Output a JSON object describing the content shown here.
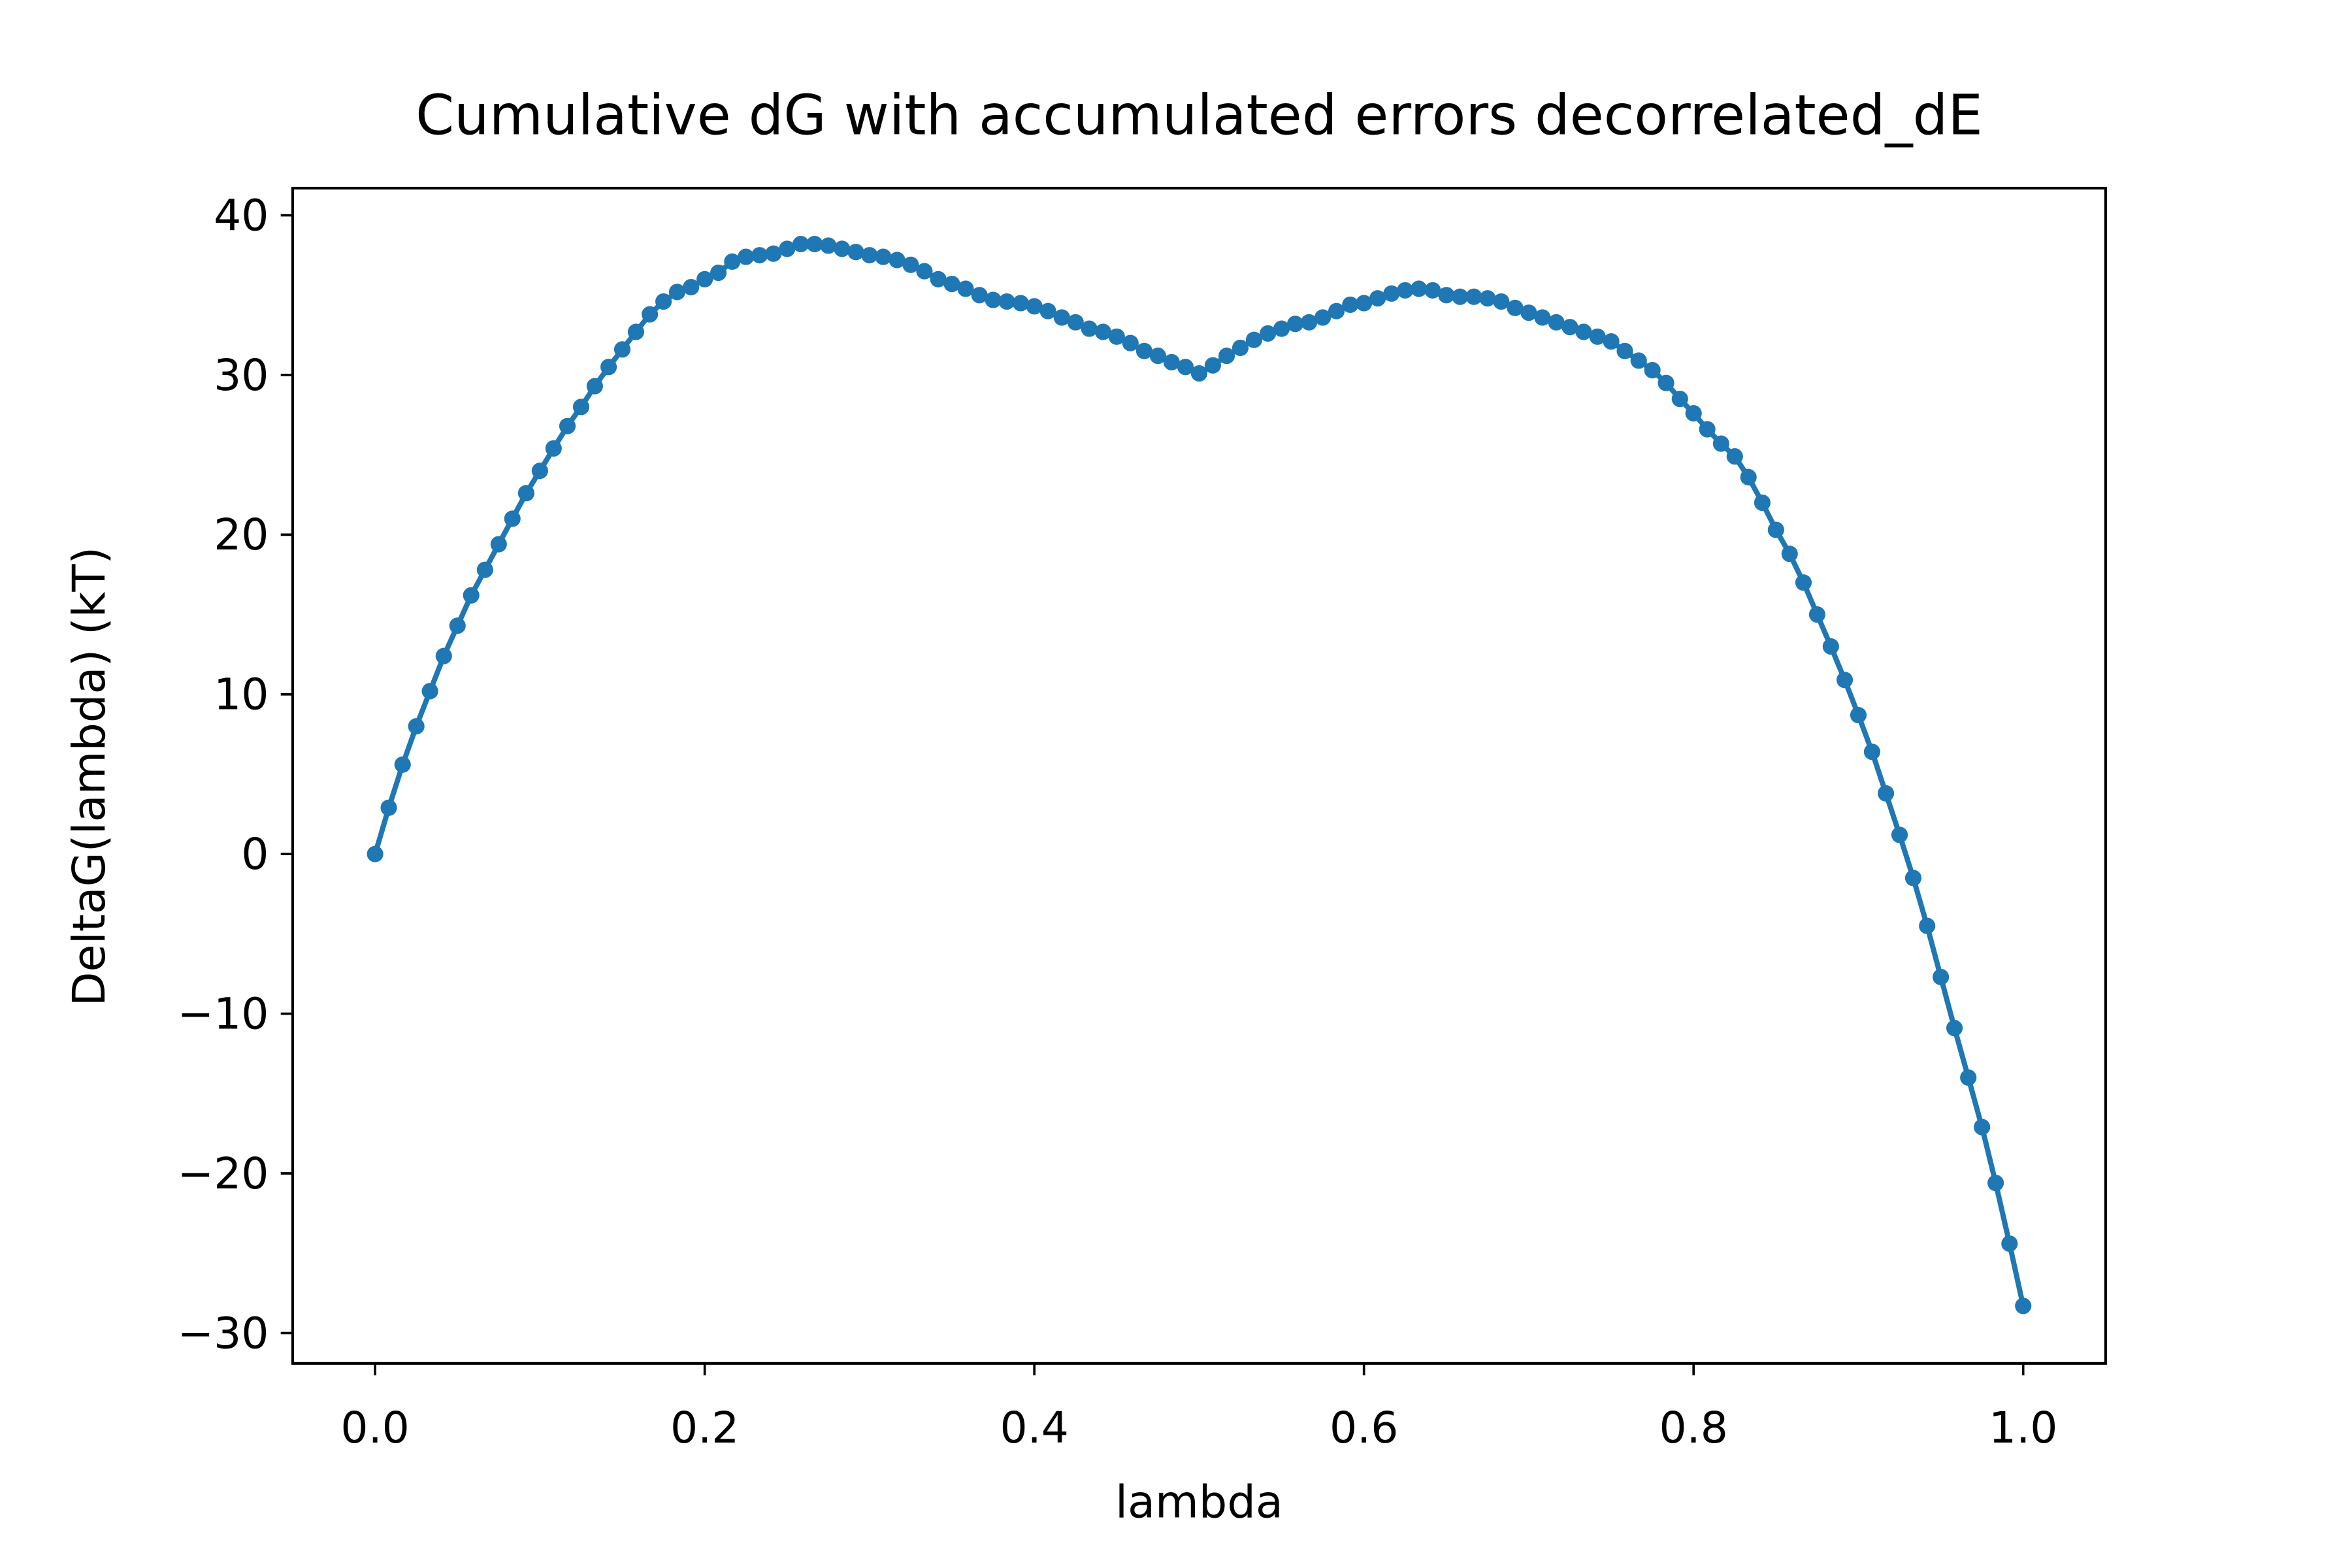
{
  "chart_data": {
    "type": "line",
    "title": "Cumulative dG with accumulated errors decorrelated_dE",
    "xlabel": "lambda",
    "ylabel": "DeltaG(lambda) (kT)",
    "x": [
      0,
      0.0083,
      0.0167,
      0.025,
      0.0333,
      0.0417,
      0.05,
      0.0583,
      0.0667,
      0.075,
      0.0833,
      0.0917,
      0.1,
      0.1083,
      0.1167,
      0.125,
      0.1333,
      0.1417,
      0.15,
      0.1583,
      0.1667,
      0.175,
      0.1833,
      0.1917,
      0.2,
      0.2083,
      0.2167,
      0.225,
      0.2333,
      0.2417,
      0.25,
      0.2583,
      0.2667,
      0.275,
      0.2833,
      0.2917,
      0.3,
      0.3083,
      0.3167,
      0.325,
      0.3333,
      0.3417,
      0.35,
      0.3583,
      0.3667,
      0.375,
      0.3833,
      0.3917,
      0.4,
      0.4083,
      0.4167,
      0.425,
      0.4333,
      0.4417,
      0.45,
      0.4583,
      0.4667,
      0.475,
      0.4833,
      0.4917,
      0.5,
      0.5083,
      0.5167,
      0.525,
      0.5333,
      0.5417,
      0.55,
      0.5583,
      0.5667,
      0.575,
      0.5833,
      0.5917,
      0.6,
      0.6083,
      0.6167,
      0.625,
      0.6333,
      0.6417,
      0.65,
      0.6583,
      0.6667,
      0.675,
      0.6833,
      0.6917,
      0.7,
      0.7083,
      0.7167,
      0.725,
      0.7333,
      0.7417,
      0.75,
      0.7583,
      0.7667,
      0.775,
      0.7833,
      0.7917,
      0.8,
      0.8083,
      0.8167,
      0.825,
      0.8333,
      0.8417,
      0.85,
      0.8583,
      0.8667,
      0.875,
      0.8833,
      0.8917,
      0.9,
      0.9083,
      0.9167,
      0.925,
      0.9333,
      0.9417,
      0.95,
      0.9583,
      0.9667,
      0.975,
      0.9833,
      0.9917,
      1.0
    ],
    "series": [
      {
        "color": "#1f77b4",
        "values": [
          0,
          2.9,
          5.6,
          8.0,
          10.2,
          12.4,
          14.3,
          16.2,
          17.8,
          19.4,
          21.0,
          22.6,
          24.0,
          25.4,
          26.8,
          28.0,
          29.3,
          30.5,
          31.6,
          32.7,
          33.8,
          34.6,
          35.2,
          35.5,
          36.0,
          36.4,
          37.1,
          37.4,
          37.5,
          37.6,
          37.9,
          38.2,
          38.2,
          38.1,
          37.9,
          37.7,
          37.5,
          37.4,
          37.2,
          36.9,
          36.5,
          36.0,
          35.7,
          35.4,
          35.0,
          34.7,
          34.6,
          34.5,
          34.3,
          34.0,
          33.6,
          33.3,
          32.9,
          32.7,
          32.4,
          32.0,
          31.5,
          31.2,
          30.8,
          30.5,
          30.1,
          30.6,
          31.2,
          31.7,
          32.2,
          32.6,
          32.9,
          33.2,
          33.3,
          33.6,
          34.0,
          34.4,
          34.5,
          34.8,
          35.1,
          35.3,
          35.4,
          35.3,
          35.0,
          34.9,
          34.9,
          34.8,
          34.6,
          34.2,
          33.9,
          33.6,
          33.3,
          33.0,
          32.7,
          32.4,
          32.1,
          31.5,
          30.9,
          30.3,
          29.5,
          28.5,
          27.6,
          26.6,
          25.7,
          24.9,
          23.6,
          22.0,
          20.3,
          18.8,
          17.0,
          15.0,
          13.0,
          10.9,
          8.7,
          6.4,
          3.8,
          1.2,
          -1.5,
          -4.5,
          -7.7,
          -10.9,
          -14.0,
          -17.1,
          -20.6,
          -24.4,
          -28.3
        ]
      }
    ],
    "xlim": [
      -0.05,
      1.05
    ],
    "ylim": [
      -31.9,
      41.7
    ],
    "xticks": [
      {
        "value": 0,
        "label": "0.0"
      },
      0.2,
      0.4,
      0.6,
      0.8,
      {
        "value": 1,
        "label": "1.0"
      }
    ],
    "yticks": [
      {
        "value": -30,
        "label": "−30"
      },
      {
        "value": -20,
        "label": "−20"
      },
      {
        "value": -10,
        "label": "−10"
      },
      0,
      10,
      20,
      30,
      40
    ],
    "markers": true,
    "grid": false
  }
}
